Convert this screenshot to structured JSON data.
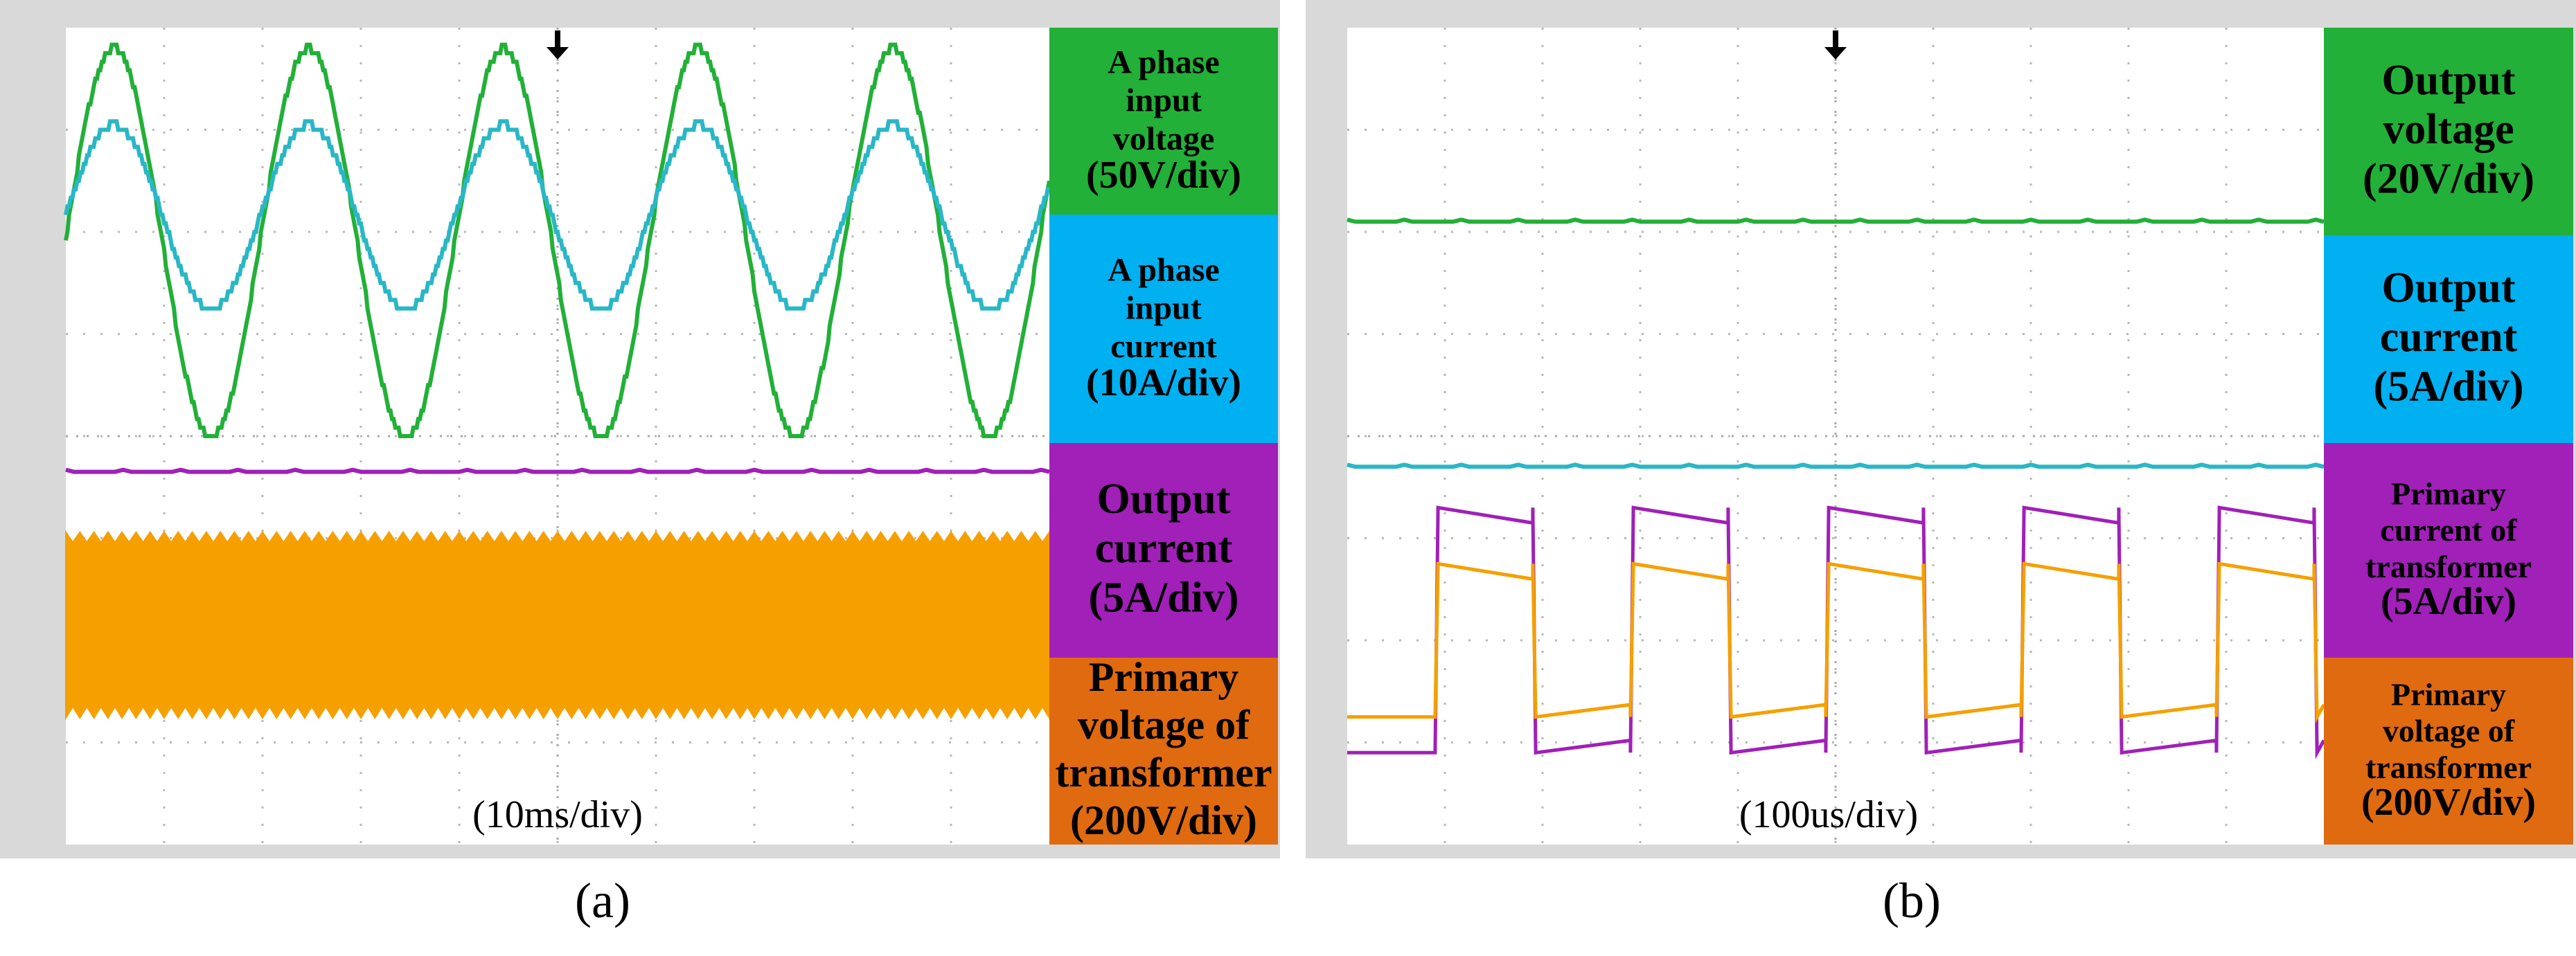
{
  "chart_data": [
    {
      "type": "line",
      "panel": "(a)",
      "timebase": "(10ms/div)",
      "grid": true,
      "grid_divisions": [
        10,
        8
      ],
      "x_range_div": [
        0,
        10
      ],
      "y_range_div": [
        0,
        8
      ],
      "series": [
        {
          "label": [
            "A phase",
            "input",
            "voltage",
            "(50V/div)"
          ],
          "color": "#22b038",
          "shape": "sine",
          "center_div": 5.9,
          "amplitude_div": 1.9,
          "cycles": 5.05,
          "phase": 1.55
        },
        {
          "label": [
            "A phase",
            "input",
            "current",
            "(10A/div)"
          ],
          "color": "#2ab7c5",
          "shape": "sine",
          "center_div": 6.15,
          "amplitude_div": 0.9,
          "cycles": 5.05,
          "phase": 1.55
        },
        {
          "label": [
            "Output",
            "current",
            "",
            "(5A/div)"
          ],
          "color": "#a020b8",
          "shape": "dc",
          "level_div": 3.65
        },
        {
          "label": [
            "Primary",
            "voltage of",
            "transformer",
            "(200V/div)"
          ],
          "color": "#f5a000",
          "shape": "band",
          "band_low_div": 1.3,
          "band_high_div": 3.0
        }
      ]
    },
    {
      "type": "line",
      "panel": "(b)",
      "timebase": "(100us/div)",
      "grid": true,
      "grid_divisions": [
        10,
        8
      ],
      "x_range_div": [
        0,
        10
      ],
      "y_range_div": [
        0,
        8
      ],
      "series": [
        {
          "label": [
            "Output",
            "voltage",
            "(20V/div)"
          ],
          "color": "#22b038",
          "shape": "dc",
          "level_div": 6.1
        },
        {
          "label": [
            "Output",
            "current",
            "(5A/div)"
          ],
          "color": "#2ab7c5",
          "shape": "dc",
          "level_div": 3.7
        },
        {
          "label": [
            "Primary",
            "current of",
            "transformer",
            "(5A/div)"
          ],
          "color": "#a020b8",
          "shape": "square",
          "high_div": 3.3,
          "low_div": 0.9,
          "period_div": 2.0,
          "start_div": 0.9
        },
        {
          "label": [
            "Primary",
            "voltage of",
            "transformer",
            "(200V/div)"
          ],
          "color": "#f5a000",
          "shape": "square",
          "high_div": 2.75,
          "low_div": 1.25,
          "period_div": 2.0,
          "start_div": 0.9
        }
      ]
    }
  ]
}
